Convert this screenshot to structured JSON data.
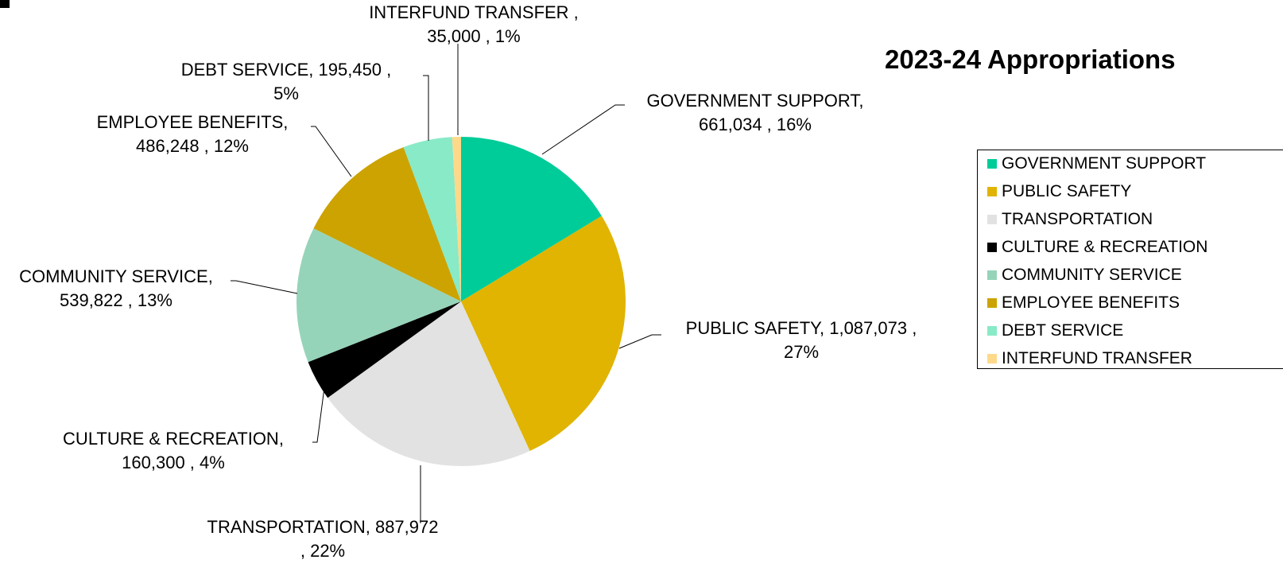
{
  "chart_data": {
    "type": "pie",
    "title": "2023-24 Appropriations",
    "legend_position": "right",
    "slices": [
      {
        "name": "GOVERNMENT SUPPORT",
        "value": 661034,
        "value_label": "661,034",
        "percent_label": "16%",
        "color": "#00CC99",
        "label_lines": [
          "GOVERNMENT SUPPORT,",
          "661,034 , 16%"
        ],
        "legend_label": "GOVERNMENT SUPPORT"
      },
      {
        "name": "PUBLIC SAFETY",
        "value": 1087073,
        "value_label": "1,087,073",
        "percent_label": "27%",
        "color": "#E0B400",
        "label_lines": [
          "PUBLIC SAFETY,  1,087,073 ,",
          "27%"
        ],
        "legend_label": "PUBLIC SAFETY"
      },
      {
        "name": "TRANSPORTATION",
        "value": 887972,
        "value_label": "887,972",
        "percent_label": "22%",
        "color": "#E2E2E2",
        "label_lines": [
          "TRANSPORTATION,  887,972",
          ", 22%"
        ],
        "legend_label": "TRANSPORTATION"
      },
      {
        "name": "CULTURE & RECREATION",
        "value": 160300,
        "value_label": "160,300",
        "percent_label": "4%",
        "color": "#000000",
        "label_lines": [
          "CULTURE & RECREATION,",
          "160,300 , 4%"
        ],
        "legend_label": "CULTURE & RECREATION"
      },
      {
        "name": "COMMUNITY SERVICE",
        "value": 539822,
        "value_label": "539,822",
        "percent_label": "13%",
        "color": "#96D4BA",
        "label_lines": [
          "COMMUNITY SERVICE,",
          "539,822 , 13%"
        ],
        "legend_label": "COMMUNITY SERVICE"
      },
      {
        "name": "EMPLOYEE BENEFITS",
        "value": 486248,
        "value_label": "486,248",
        "percent_label": "12%",
        "color": "#CCA300",
        "label_lines": [
          "EMPLOYEE BENEFITS,",
          "486,248 , 12%"
        ],
        "legend_label": "EMPLOYEE BENEFITS"
      },
      {
        "name": "DEBT SERVICE",
        "value": 195450,
        "value_label": "195,450",
        "percent_label": "5%",
        "color": "#88EAC7",
        "label_lines": [
          "DEBT SERVICE,  195,450 ,",
          "5%"
        ],
        "legend_label": "DEBT SERVICE"
      },
      {
        "name": "INTERFUND TRANSFER",
        "value": 35000,
        "value_label": "35,000",
        "percent_label": "1%",
        "color": "#FFD98A",
        "label_lines": [
          "INTERFUND TRANSFER ,",
          "35,000 , 1%"
        ],
        "legend_label": "INTERFUND TRANSFER"
      }
    ]
  }
}
